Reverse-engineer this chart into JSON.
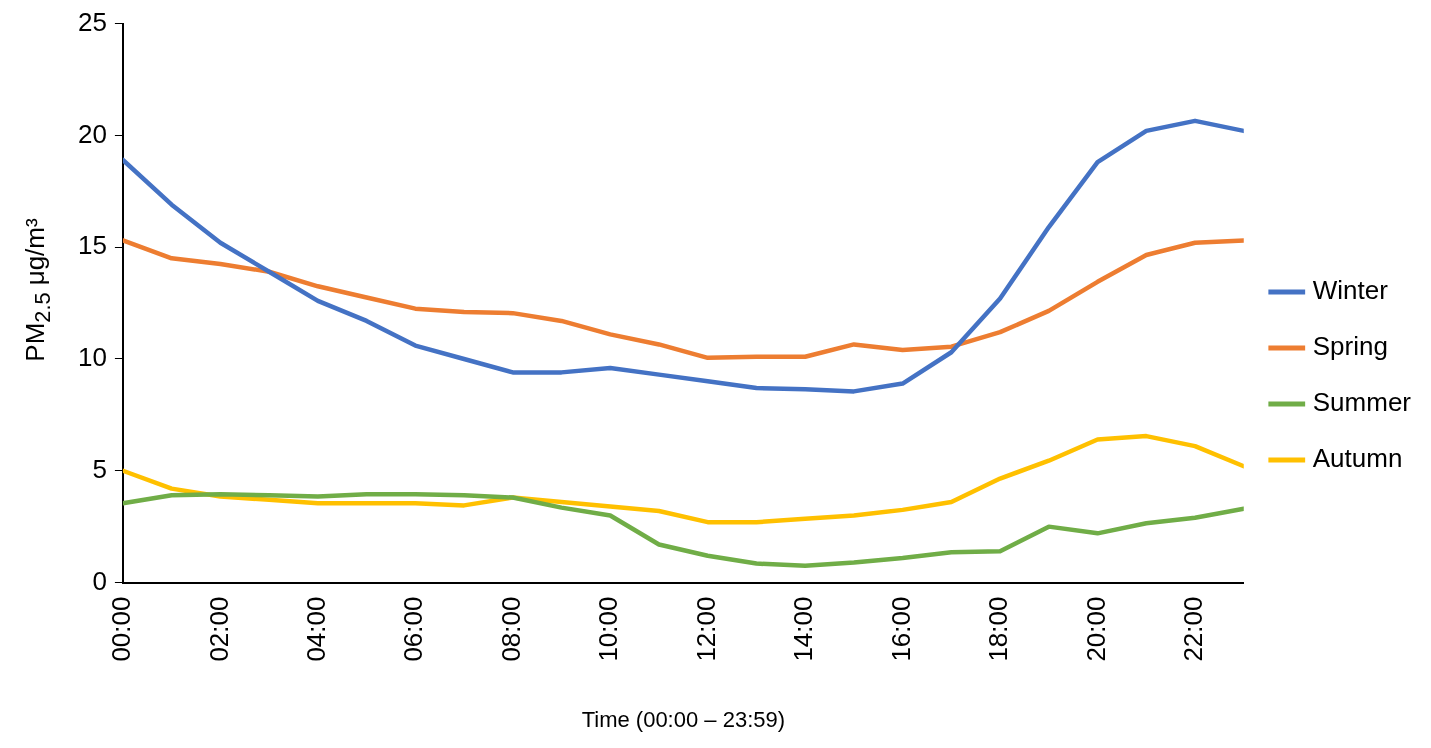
{
  "chart_data": {
    "type": "line",
    "xlabel": "Time (00:00 – 23:59)",
    "ylabel": "PM$_{2.5}$ μg/m³",
    "x": [
      0,
      1,
      2,
      3,
      4,
      5,
      6,
      7,
      8,
      9,
      10,
      11,
      12,
      13,
      14,
      15,
      16,
      17,
      18,
      19,
      20,
      21,
      22,
      23
    ],
    "xlim": [
      0,
      23
    ],
    "xticks": [
      {
        "value": 0,
        "label": "00:00"
      },
      {
        "value": 2,
        "label": "02:00"
      },
      {
        "value": 4,
        "label": "04:00"
      },
      {
        "value": 6,
        "label": "06:00"
      },
      {
        "value": 8,
        "label": "08:00"
      },
      {
        "value": 10,
        "label": "10:00"
      },
      {
        "value": 12,
        "label": "12:00"
      },
      {
        "value": 14,
        "label": "14:00"
      },
      {
        "value": 16,
        "label": "16:00"
      },
      {
        "value": 18,
        "label": "18:00"
      },
      {
        "value": 20,
        "label": "20:00"
      },
      {
        "value": 22,
        "label": "22:00"
      }
    ],
    "ylim": [
      0,
      25
    ],
    "yticks": [
      0,
      5,
      10,
      15,
      20,
      25
    ],
    "grid": false,
    "legend": "right",
    "marker": "none",
    "line_style": "solid",
    "series": [
      {
        "name": "Winter",
        "color": "#4472c4",
        "values": [
          18.9,
          16.9,
          15.2,
          13.9,
          12.6,
          11.7,
          10.6,
          10.0,
          9.4,
          9.4,
          9.6,
          9.3,
          9.0,
          8.7,
          8.65,
          8.55,
          8.9,
          10.3,
          12.7,
          15.9,
          18.8,
          20.2,
          20.65,
          20.2
        ]
      },
      {
        "name": "Spring",
        "color": "#ed7d31",
        "values": [
          15.3,
          14.5,
          14.25,
          13.9,
          13.25,
          12.75,
          12.25,
          12.1,
          12.05,
          11.7,
          11.1,
          10.65,
          10.05,
          10.1,
          10.1,
          10.65,
          10.4,
          10.55,
          11.2,
          12.15,
          13.45,
          14.65,
          15.2,
          15.3
        ]
      },
      {
        "name": "Summer",
        "color": "#70ad47",
        "values": [
          3.55,
          3.9,
          3.95,
          3.9,
          3.85,
          3.95,
          3.95,
          3.9,
          3.8,
          3.35,
          3.0,
          1.7,
          1.2,
          0.85,
          0.75,
          0.9,
          1.1,
          1.35,
          1.4,
          2.5,
          2.2,
          2.65,
          2.9,
          3.3
        ]
      },
      {
        "name": "Autumn",
        "color": "#ffc000",
        "values": [
          5.0,
          4.2,
          3.85,
          3.7,
          3.55,
          3.55,
          3.55,
          3.45,
          3.8,
          3.6,
          3.4,
          3.2,
          2.7,
          2.7,
          2.85,
          3.0,
          3.25,
          3.6,
          4.65,
          5.45,
          6.4,
          6.55,
          6.1,
          5.2
        ]
      }
    ]
  }
}
